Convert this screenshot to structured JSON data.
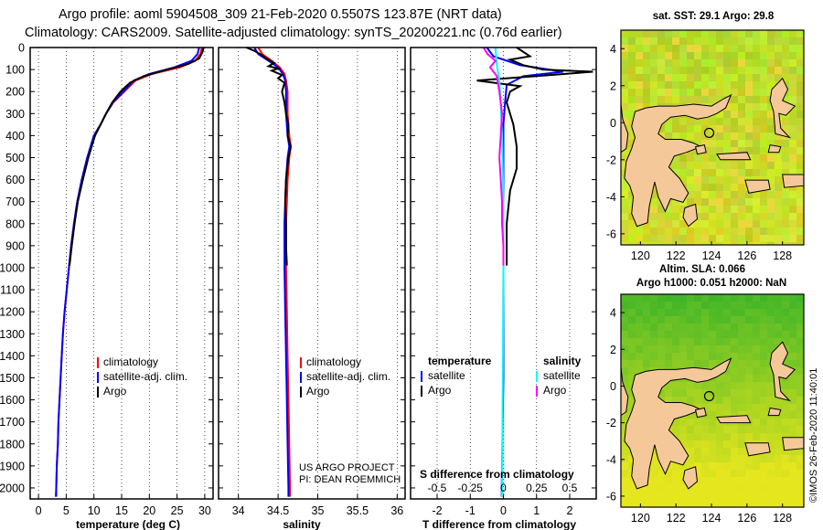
{
  "header": {
    "line1": "Argo profile: aoml 5904508_309 21-Feb-2020 0.5507S 123.87E (NRT data)",
    "line2": "Climatology: CARS2009. Satellite-adjusted climatology: synTS_20200221.nc (0.76d earlier)"
  },
  "colors": {
    "climatology": "#ff0000",
    "satellite": "#0000ff",
    "argo": "#000000",
    "argo_salinity_diff": "#ff00ff",
    "satellite_salinity_diff": "#00ffff",
    "land": "#f5c89a",
    "sea_dark_green": "#3fb53f",
    "sea_yellow": "#d8ef2e"
  },
  "chart_data": [
    {
      "type": "line",
      "name": "temperature-profile",
      "xlabel": "temperature (deg C)",
      "xlim": [
        -1.5,
        31.5
      ],
      "xticks": [
        0,
        5,
        10,
        15,
        20,
        25,
        30
      ],
      "xtick_labels": [
        "0",
        "5",
        "10",
        "15",
        "20",
        "25",
        "30"
      ],
      "ylim": [
        0,
        2050
      ],
      "yticks": [
        0,
        100,
        200,
        300,
        400,
        500,
        600,
        700,
        800,
        900,
        1000,
        1100,
        1200,
        1300,
        1400,
        1500,
        1600,
        1700,
        1800,
        1900,
        2000
      ],
      "ytick_labels": [
        "0",
        "100",
        "200",
        "300",
        "400",
        "500",
        "600",
        "700",
        "800",
        "900",
        "1000",
        "1100",
        "1200",
        "1300",
        "1400",
        "1500",
        "1600",
        "1700",
        "1800",
        "1900",
        "2000"
      ],
      "legend": {
        "placement": "lower-right",
        "entries": [
          "climatology",
          "satellite-adj. clim.",
          "Argo"
        ]
      },
      "series": [
        {
          "name": "climatology",
          "color": "#ff0000",
          "points": [
            [
              29.5,
              0
            ],
            [
              29.2,
              30
            ],
            [
              28.3,
              60
            ],
            [
              25.5,
              90
            ],
            [
              20.5,
              120
            ],
            [
              17.5,
              150
            ],
            [
              15.5,
              200
            ],
            [
              13.5,
              250
            ],
            [
              12.2,
              300
            ],
            [
              11.2,
              350
            ],
            [
              10.0,
              400
            ],
            [
              8.8,
              500
            ],
            [
              7.8,
              600
            ],
            [
              7.0,
              700
            ],
            [
              6.4,
              800
            ],
            [
              5.9,
              900
            ],
            [
              5.5,
              1000
            ],
            [
              5.1,
              1100
            ],
            [
              4.7,
              1200
            ],
            [
              4.4,
              1300
            ],
            [
              4.2,
              1400
            ],
            [
              4.0,
              1500
            ],
            [
              3.8,
              1600
            ],
            [
              3.6,
              1700
            ],
            [
              3.5,
              1800
            ],
            [
              3.3,
              1900
            ],
            [
              3.2,
              2000
            ],
            [
              3.1,
              2040
            ]
          ]
        },
        {
          "name": "satellite-adj. clim.",
          "color": "#0000ff",
          "points": [
            [
              29.0,
              0
            ],
            [
              28.7,
              30
            ],
            [
              27.6,
              60
            ],
            [
              24.5,
              90
            ],
            [
              20.0,
              120
            ],
            [
              17.2,
              150
            ],
            [
              15.3,
              200
            ],
            [
              13.4,
              250
            ],
            [
              12.2,
              300
            ],
            [
              11.2,
              350
            ],
            [
              10.0,
              400
            ],
            [
              8.8,
              500
            ],
            [
              7.8,
              600
            ],
            [
              7.0,
              700
            ],
            [
              6.4,
              800
            ],
            [
              5.9,
              900
            ],
            [
              5.5,
              1000
            ],
            [
              5.1,
              1100
            ],
            [
              4.7,
              1200
            ],
            [
              4.4,
              1300
            ],
            [
              4.2,
              1400
            ],
            [
              4.0,
              1500
            ],
            [
              3.8,
              1600
            ],
            [
              3.6,
              1700
            ],
            [
              3.5,
              1800
            ],
            [
              3.3,
              1900
            ],
            [
              3.2,
              2000
            ],
            [
              3.2,
              2040
            ]
          ]
        },
        {
          "name": "Argo",
          "color": "#000000",
          "points": [
            [
              29.8,
              0
            ],
            [
              29.6,
              20
            ],
            [
              29.0,
              50
            ],
            [
              27.0,
              75
            ],
            [
              22.5,
              105
            ],
            [
              19.0,
              130
            ],
            [
              16.5,
              160
            ],
            [
              14.8,
              200
            ],
            [
              13.3,
              250
            ],
            [
              12.2,
              300
            ],
            [
              11.2,
              350
            ],
            [
              10.2,
              400
            ],
            [
              9.0,
              500
            ],
            [
              8.0,
              600
            ],
            [
              7.1,
              700
            ],
            [
              6.5,
              800
            ],
            [
              6.0,
              900
            ],
            [
              5.6,
              990
            ]
          ]
        }
      ]
    },
    {
      "type": "line",
      "name": "salinity-profile",
      "xlabel": "salinity",
      "xlim": [
        33.75,
        36.1
      ],
      "xticks": [
        34,
        34.5,
        35,
        35.5,
        36
      ],
      "xtick_labels": [
        "34",
        "34.5",
        "35",
        "35.5",
        "36"
      ],
      "ylim": [
        0,
        2050
      ],
      "legend": {
        "placement": "lower-right",
        "entries": [
          "climatology",
          "satellite-adj. clim.",
          "Argo"
        ]
      },
      "annotation": [
        "US ARGO PROJECT",
        "PI: DEAN ROEMMICH"
      ],
      "series": [
        {
          "name": "climatology",
          "color": "#ff0000",
          "points": [
            [
              34.25,
              0
            ],
            [
              34.3,
              30
            ],
            [
              34.42,
              60
            ],
            [
              34.52,
              90
            ],
            [
              34.58,
              120
            ],
            [
              34.6,
              150
            ],
            [
              34.62,
              200
            ],
            [
              34.62,
              300
            ],
            [
              34.64,
              400
            ],
            [
              34.66,
              450
            ],
            [
              34.64,
              500
            ],
            [
              34.62,
              600
            ],
            [
              34.61,
              700
            ],
            [
              34.6,
              800
            ],
            [
              34.6,
              1000
            ],
            [
              34.61,
              1200
            ],
            [
              34.62,
              1400
            ],
            [
              34.63,
              1600
            ],
            [
              34.64,
              1800
            ],
            [
              34.65,
              2000
            ],
            [
              34.65,
              2040
            ]
          ]
        },
        {
          "name": "satellite-adj. clim.",
          "color": "#0000ff",
          "points": [
            [
              34.2,
              0
            ],
            [
              34.25,
              30
            ],
            [
              34.38,
              60
            ],
            [
              34.5,
              90
            ],
            [
              34.56,
              120
            ],
            [
              34.59,
              150
            ],
            [
              34.6,
              200
            ],
            [
              34.6,
              300
            ],
            [
              34.62,
              400
            ],
            [
              34.64,
              450
            ],
            [
              34.62,
              500
            ],
            [
              34.6,
              600
            ],
            [
              34.59,
              700
            ],
            [
              34.58,
              800
            ],
            [
              34.58,
              1000
            ],
            [
              34.59,
              1200
            ],
            [
              34.6,
              1400
            ],
            [
              34.61,
              1600
            ],
            [
              34.62,
              1800
            ],
            [
              34.63,
              2000
            ],
            [
              34.63,
              2040
            ]
          ]
        },
        {
          "name": "Argo",
          "color": "#000000",
          "points": [
            [
              34.1,
              0
            ],
            [
              34.2,
              15
            ],
            [
              34.3,
              35
            ],
            [
              34.35,
              50
            ],
            [
              34.45,
              70
            ],
            [
              34.38,
              85
            ],
            [
              34.5,
              95
            ],
            [
              34.42,
              105
            ],
            [
              34.55,
              125
            ],
            [
              34.5,
              140
            ],
            [
              34.58,
              160
            ],
            [
              34.55,
              200
            ],
            [
              34.58,
              250
            ],
            [
              34.6,
              300
            ],
            [
              34.63,
              350
            ],
            [
              34.62,
              400
            ],
            [
              34.66,
              450
            ],
            [
              34.63,
              500
            ],
            [
              34.6,
              600
            ],
            [
              34.59,
              700
            ],
            [
              34.6,
              800
            ],
            [
              34.6,
              900
            ],
            [
              34.61,
              990
            ]
          ]
        }
      ]
    },
    {
      "type": "line",
      "name": "difference-from-climatology",
      "xlabel": "T difference from climatology",
      "xlim": [
        -2.8,
        2.8
      ],
      "xticks": [
        -2,
        -1,
        0,
        1,
        2
      ],
      "xtick_labels": [
        "-2",
        "-1",
        "0",
        "1",
        "2"
      ],
      "top_axis_label": "S difference from climatology",
      "top_axis_ticks": [
        -0.5,
        -0.25,
        0,
        0.25,
        0.5
      ],
      "top_axis_tick_labels": [
        "-0.5",
        "-0.25",
        "0",
        "0.25",
        "0.5"
      ],
      "ylim": [
        0,
        2050
      ],
      "legend": {
        "placement": "lower",
        "headers": [
          "temperature",
          "salinity"
        ],
        "temperature_entries": [
          "satellite",
          "Argo"
        ],
        "salinity_entries": [
          "satellite",
          "Argo"
        ]
      },
      "series": [
        {
          "name": "temperature satellite",
          "color": "#0000ff",
          "points": [
            [
              -0.5,
              0
            ],
            [
              -0.3,
              40
            ],
            [
              0.5,
              80
            ],
            [
              1.8,
              110
            ],
            [
              0.6,
              130
            ],
            [
              0.1,
              170
            ],
            [
              0.05,
              250
            ],
            [
              0.0,
              350
            ],
            [
              0.0,
              600
            ],
            [
              0.0,
              1000
            ],
            [
              0.0,
              1500
            ],
            [
              -0.05,
              2000
            ],
            [
              -0.05,
              2040
            ]
          ]
        },
        {
          "name": "temperature Argo",
          "color": "#000000",
          "points": [
            [
              0.4,
              0
            ],
            [
              0.8,
              40
            ],
            [
              0.2,
              55
            ],
            [
              0.6,
              80
            ],
            [
              1.2,
              100
            ],
            [
              2.7,
              110
            ],
            [
              1.0,
              130
            ],
            [
              -0.8,
              150
            ],
            [
              0.5,
              175
            ],
            [
              0.2,
              200
            ],
            [
              0.1,
              250
            ],
            [
              0.3,
              350
            ],
            [
              0.4,
              450
            ],
            [
              0.4,
              550
            ],
            [
              0.2,
              650
            ],
            [
              0.1,
              800
            ],
            [
              0.1,
              990
            ]
          ]
        },
        {
          "name": "salinity satellite",
          "color": "#00ffff",
          "points": [
            [
              -0.06,
              0
            ],
            [
              -0.05,
              80
            ],
            [
              -0.03,
              150
            ],
            [
              -0.02,
              250
            ],
            [
              -0.01,
              400
            ],
            [
              0.0,
              700
            ],
            [
              0.0,
              1000
            ],
            [
              -0.005,
              1500
            ],
            [
              -0.01,
              2000
            ],
            [
              -0.01,
              2040
            ]
          ]
        },
        {
          "name": "salinity Argo",
          "color": "#ff00ff",
          "points": [
            [
              -0.15,
              0
            ],
            [
              -0.12,
              30
            ],
            [
              -0.06,
              60
            ],
            [
              -0.1,
              90
            ],
            [
              -0.05,
              130
            ],
            [
              -0.03,
              200
            ],
            [
              -0.01,
              300
            ],
            [
              -0.02,
              400
            ],
            [
              -0.03,
              500
            ],
            [
              -0.02,
              600
            ],
            [
              -0.01,
              700
            ],
            [
              -0.01,
              800
            ],
            [
              0.0,
              900
            ],
            [
              0.0,
              990
            ]
          ]
        }
      ]
    }
  ],
  "maps": [
    {
      "name": "sst-map",
      "title": "sat. SST: 29.1  Argo: 29.8",
      "xticks": [
        120,
        122,
        124,
        126,
        128
      ],
      "yticks": [
        4,
        2,
        0,
        -2,
        -4,
        -6
      ],
      "argo_position": {
        "lon": 123.87,
        "lat": -0.55
      }
    },
    {
      "name": "sla-map",
      "title_line1": "Altim. SLA: 0.066",
      "title_line2": "Argo h1000: 0.051  h2000: NaN",
      "xticks": [
        120,
        122,
        124,
        126,
        128
      ],
      "yticks": [
        4,
        2,
        0,
        -2,
        -4,
        -6
      ],
      "argo_position": {
        "lon": 123.87,
        "lat": -0.55
      }
    }
  ],
  "footer": {
    "credit": "©IMOS 26-Feb-2020 11:40:01"
  }
}
